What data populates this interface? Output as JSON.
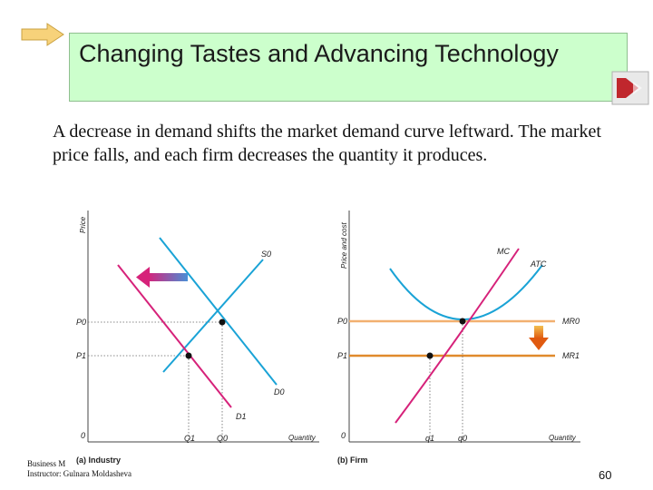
{
  "slide": {
    "title": "Changing Tastes and Advancing Technology",
    "body": "A decrease in demand shifts the market demand curve leftward. The market price falls, and each firm decreases the quantity it produces.",
    "footer_line1": "Business M",
    "footer_line2": "Instructor: Gulnara Moldasheva",
    "page_number": "60"
  },
  "industry": {
    "panel_label": "(a) Industry",
    "y_axis_label": "Price",
    "x_axis_label": "Quantity",
    "origin": "0",
    "price_high": "P0",
    "price_low": "P1",
    "q_low": "Q1",
    "q_high": "Q0",
    "supply_label": "S0",
    "demand_old_label": "D0",
    "demand_new_label": "D1"
  },
  "firm": {
    "panel_label": "(b) Firm",
    "y_axis_label": "Price and cost",
    "x_axis_label": "Quantity",
    "origin": "0",
    "price_high": "P0",
    "price_low": "P1",
    "q_low": "q1",
    "q_high": "q0",
    "mc_label": "MC",
    "atc_label": "ATC",
    "mr_old_label": "MR0",
    "mr_new_label": "MR1"
  },
  "colors": {
    "title_bg": "#ccffcc",
    "demand_shifted": "#d6227a",
    "curves_blue": "#1aa3d6",
    "mr_old": "#f2b070",
    "mr_new": "#e08a2c",
    "shift_arrow_left": "#d6227a",
    "shift_arrow_down": "#e8761c"
  },
  "icons": {
    "title_decoration": "pencil-arrow-icon",
    "nav_button": "forward-arrow-icon"
  }
}
